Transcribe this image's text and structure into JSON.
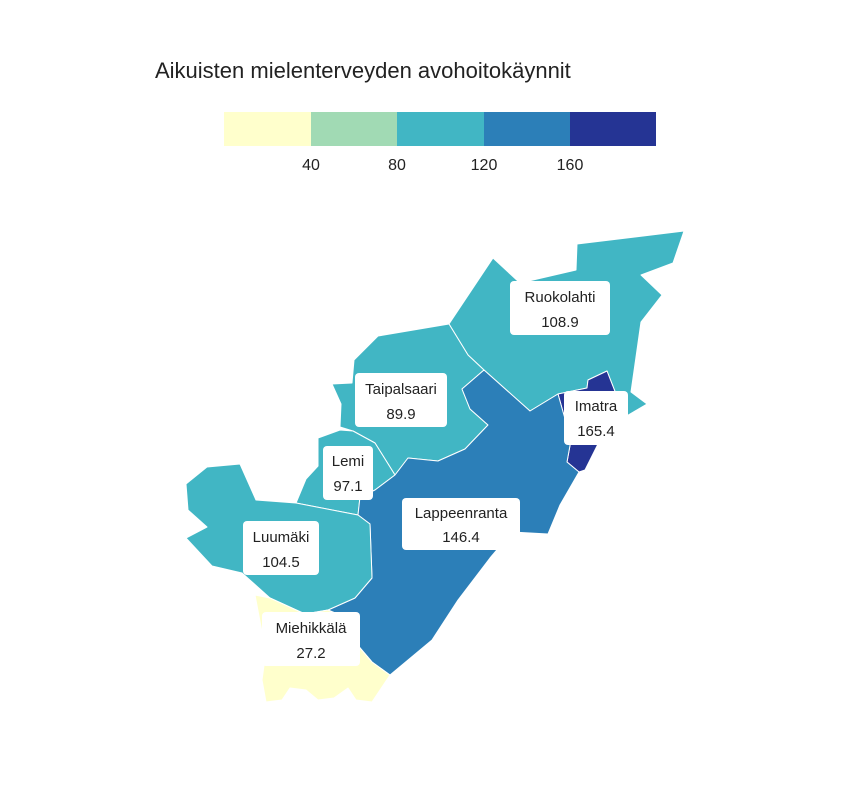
{
  "title": "Aikuisten mielenterveyden avohoitokäynnit",
  "legend": {
    "colors": [
      "#ffffcc",
      "#a1dab4",
      "#41b6c4",
      "#2c7fb8",
      "#253494"
    ],
    "ticks": [
      "40",
      "80",
      "120",
      "160"
    ]
  },
  "regions": [
    {
      "id": "ruokolahti",
      "name": "Ruokolahti",
      "value": "108.9",
      "color": "#41b6c4"
    },
    {
      "id": "taipalsaari",
      "name": "Taipalsaari",
      "value": "89.9",
      "color": "#41b6c4"
    },
    {
      "id": "imatra",
      "name": "Imatra",
      "value": "165.4",
      "color": "#253494"
    },
    {
      "id": "lemi",
      "name": "Lemi",
      "value": "97.1",
      "color": "#41b6c4"
    },
    {
      "id": "lappeenranta",
      "name": "Lappeenranta",
      "value": "146.4",
      "color": "#2c7fb8"
    },
    {
      "id": "luumaki",
      "name": "Luumäki",
      "value": "104.5",
      "color": "#41b6c4"
    },
    {
      "id": "miehikkala",
      "name": "Miehikkälä",
      "value": "27.2",
      "color": "#ffffcc"
    }
  ]
}
